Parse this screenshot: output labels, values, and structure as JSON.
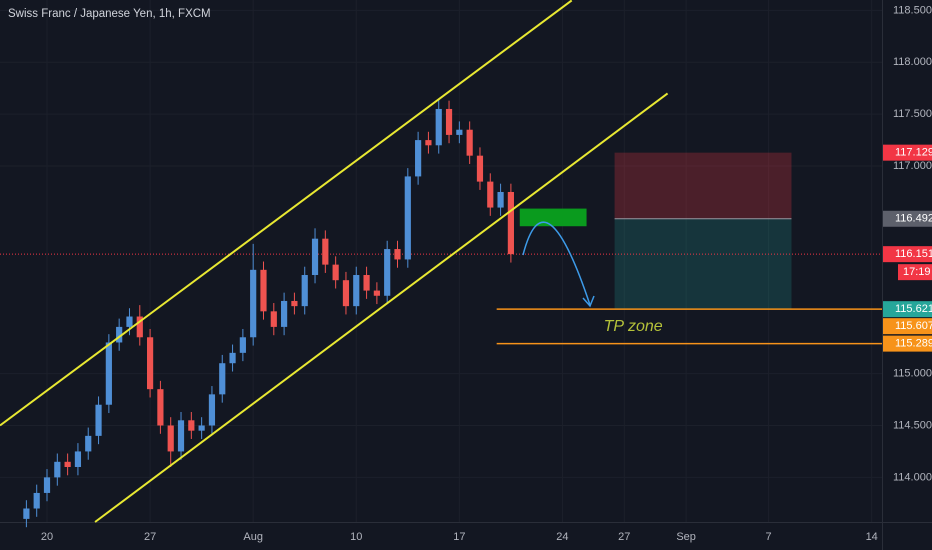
{
  "chart_data": {
    "type": "candlestick",
    "title": "Swiss Franc / Japanese Yen, 1h, FXCM",
    "x": [
      -1,
      -0.5,
      0,
      0.5,
      1,
      1.5,
      2,
      2.5,
      3,
      3.5,
      4,
      4.5,
      5,
      5.5,
      6,
      6.5,
      7,
      7.5,
      8,
      8.5,
      9,
      9.5,
      10,
      10.5,
      11,
      11.5,
      12,
      12.5,
      13,
      13.5,
      14,
      14.5,
      15,
      15.5,
      16,
      16.5,
      17,
      17.5,
      18,
      18.5,
      19,
      19.5,
      20,
      20.5,
      21,
      21.5,
      22,
      22.5
    ],
    "open": [
      113.6,
      113.7,
      113.85,
      114.0,
      114.15,
      114.1,
      114.25,
      114.4,
      114.7,
      115.3,
      115.45,
      115.55,
      115.35,
      114.85,
      114.5,
      114.25,
      114.55,
      114.45,
      114.5,
      114.8,
      115.1,
      115.2,
      115.35,
      116.0,
      115.6,
      115.45,
      115.7,
      115.65,
      115.95,
      116.3,
      116.05,
      115.9,
      115.65,
      115.95,
      115.8,
      115.75,
      116.2,
      116.1,
      116.9,
      117.25,
      117.2,
      117.55,
      117.3,
      117.35,
      117.1,
      116.85,
      116.6,
      116.75
    ],
    "high": [
      113.78,
      113.93,
      114.08,
      114.23,
      114.23,
      114.33,
      114.48,
      114.78,
      115.38,
      115.53,
      115.63,
      115.66,
      115.43,
      114.93,
      114.58,
      114.63,
      114.63,
      114.58,
      114.88,
      115.18,
      115.28,
      115.43,
      116.25,
      116.08,
      115.68,
      115.78,
      115.78,
      116.03,
      116.4,
      116.38,
      116.13,
      115.98,
      116.03,
      116.03,
      115.88,
      116.28,
      116.28,
      116.98,
      117.33,
      117.33,
      117.65,
      117.63,
      117.43,
      117.43,
      117.18,
      116.93,
      116.83,
      116.83
    ],
    "low": [
      113.52,
      113.62,
      113.77,
      113.92,
      114.02,
      114.02,
      114.17,
      114.32,
      114.62,
      115.22,
      115.37,
      115.27,
      114.77,
      114.42,
      114.1,
      114.17,
      114.37,
      114.37,
      114.42,
      114.72,
      115.02,
      115.12,
      115.27,
      115.52,
      115.37,
      115.37,
      115.57,
      115.57,
      115.87,
      115.97,
      115.82,
      115.57,
      115.57,
      115.72,
      115.67,
      115.67,
      116.02,
      116.02,
      116.82,
      117.12,
      117.12,
      117.22,
      117.22,
      117.02,
      116.77,
      116.52,
      116.52,
      116.07
    ],
    "close": [
      113.7,
      113.85,
      114.0,
      114.15,
      114.1,
      114.25,
      114.4,
      114.7,
      115.3,
      115.45,
      115.55,
      115.35,
      114.85,
      114.5,
      114.25,
      114.55,
      114.45,
      114.5,
      114.8,
      115.1,
      115.2,
      115.35,
      116.0,
      115.6,
      115.45,
      115.7,
      115.65,
      115.95,
      116.3,
      116.05,
      115.9,
      115.65,
      115.95,
      115.8,
      115.75,
      116.2,
      116.1,
      116.9,
      117.25,
      117.2,
      117.55,
      117.3,
      117.35,
      117.1,
      116.85,
      116.6,
      116.75,
      116.151
    ],
    "up_color": "#4f8fd6",
    "down_color": "#ef5350",
    "xlim": [
      -2.28,
      40.5
    ],
    "xticks": [
      {
        "value": 0,
        "label": "20"
      },
      {
        "value": 5,
        "label": "27"
      },
      {
        "value": 10,
        "label": "Aug"
      },
      {
        "value": 15,
        "label": "10"
      },
      {
        "value": 20,
        "label": "17"
      },
      {
        "value": 25,
        "label": "24"
      },
      {
        "value": 28,
        "label": "27"
      },
      {
        "value": 31,
        "label": "Sep"
      },
      {
        "value": 35,
        "label": "7"
      },
      {
        "value": 40,
        "label": "14"
      }
    ],
    "ylim": [
      113.57,
      118.6
    ],
    "yticks": [
      {
        "value": 118.5,
        "label": "118.500"
      },
      {
        "value": 118,
        "label": "118.000"
      },
      {
        "value": 117.5,
        "label": "117.500"
      },
      {
        "value": 117,
        "label": "117.000"
      },
      {
        "value": 115,
        "label": "115.000"
      },
      {
        "value": 114.5,
        "label": "114.500"
      },
      {
        "value": 114,
        "label": "114.000"
      }
    ],
    "grid": true,
    "channel": [
      {
        "x": [
          -2.28,
          25.45
        ],
        "y": [
          114.5,
          118.596
        ],
        "color": "#e8e832"
      },
      {
        "x": [
          2.33,
          30.1
        ],
        "y": [
          113.57,
          117.7
        ],
        "color": "#e8e832"
      }
    ],
    "levels": [
      {
        "value": 115.621,
        "x_start": 21.81,
        "color": "#f7931a"
      },
      {
        "value": 115.289,
        "x_start": 21.81,
        "color": "#f7931a"
      }
    ],
    "current_price": 116.151,
    "position_box": {
      "x": [
        27.53,
        36.11
      ],
      "stop": 117.129,
      "entry": 116.492,
      "target": 115.621
    },
    "entry_zone": {
      "x": [
        22.93,
        26.17
      ],
      "y": [
        116.42,
        116.59
      ],
      "color": "#0a9b1e"
    },
    "annotation": "TP zone",
    "annotation_price": 115.45,
    "annotation_x": 27.0,
    "price_tags": [
      {
        "value": 117.129,
        "color": "#f23645"
      },
      {
        "value": 116.492,
        "color": "#5d606b"
      },
      {
        "value": 116.151,
        "color": "#f23645"
      },
      {
        "value": 115.621,
        "color": "#26a69a"
      },
      {
        "value": 115.607,
        "color": "#f7931a"
      },
      {
        "value": 115.289,
        "color": "#f7931a"
      }
    ],
    "countdown": "17:19"
  }
}
